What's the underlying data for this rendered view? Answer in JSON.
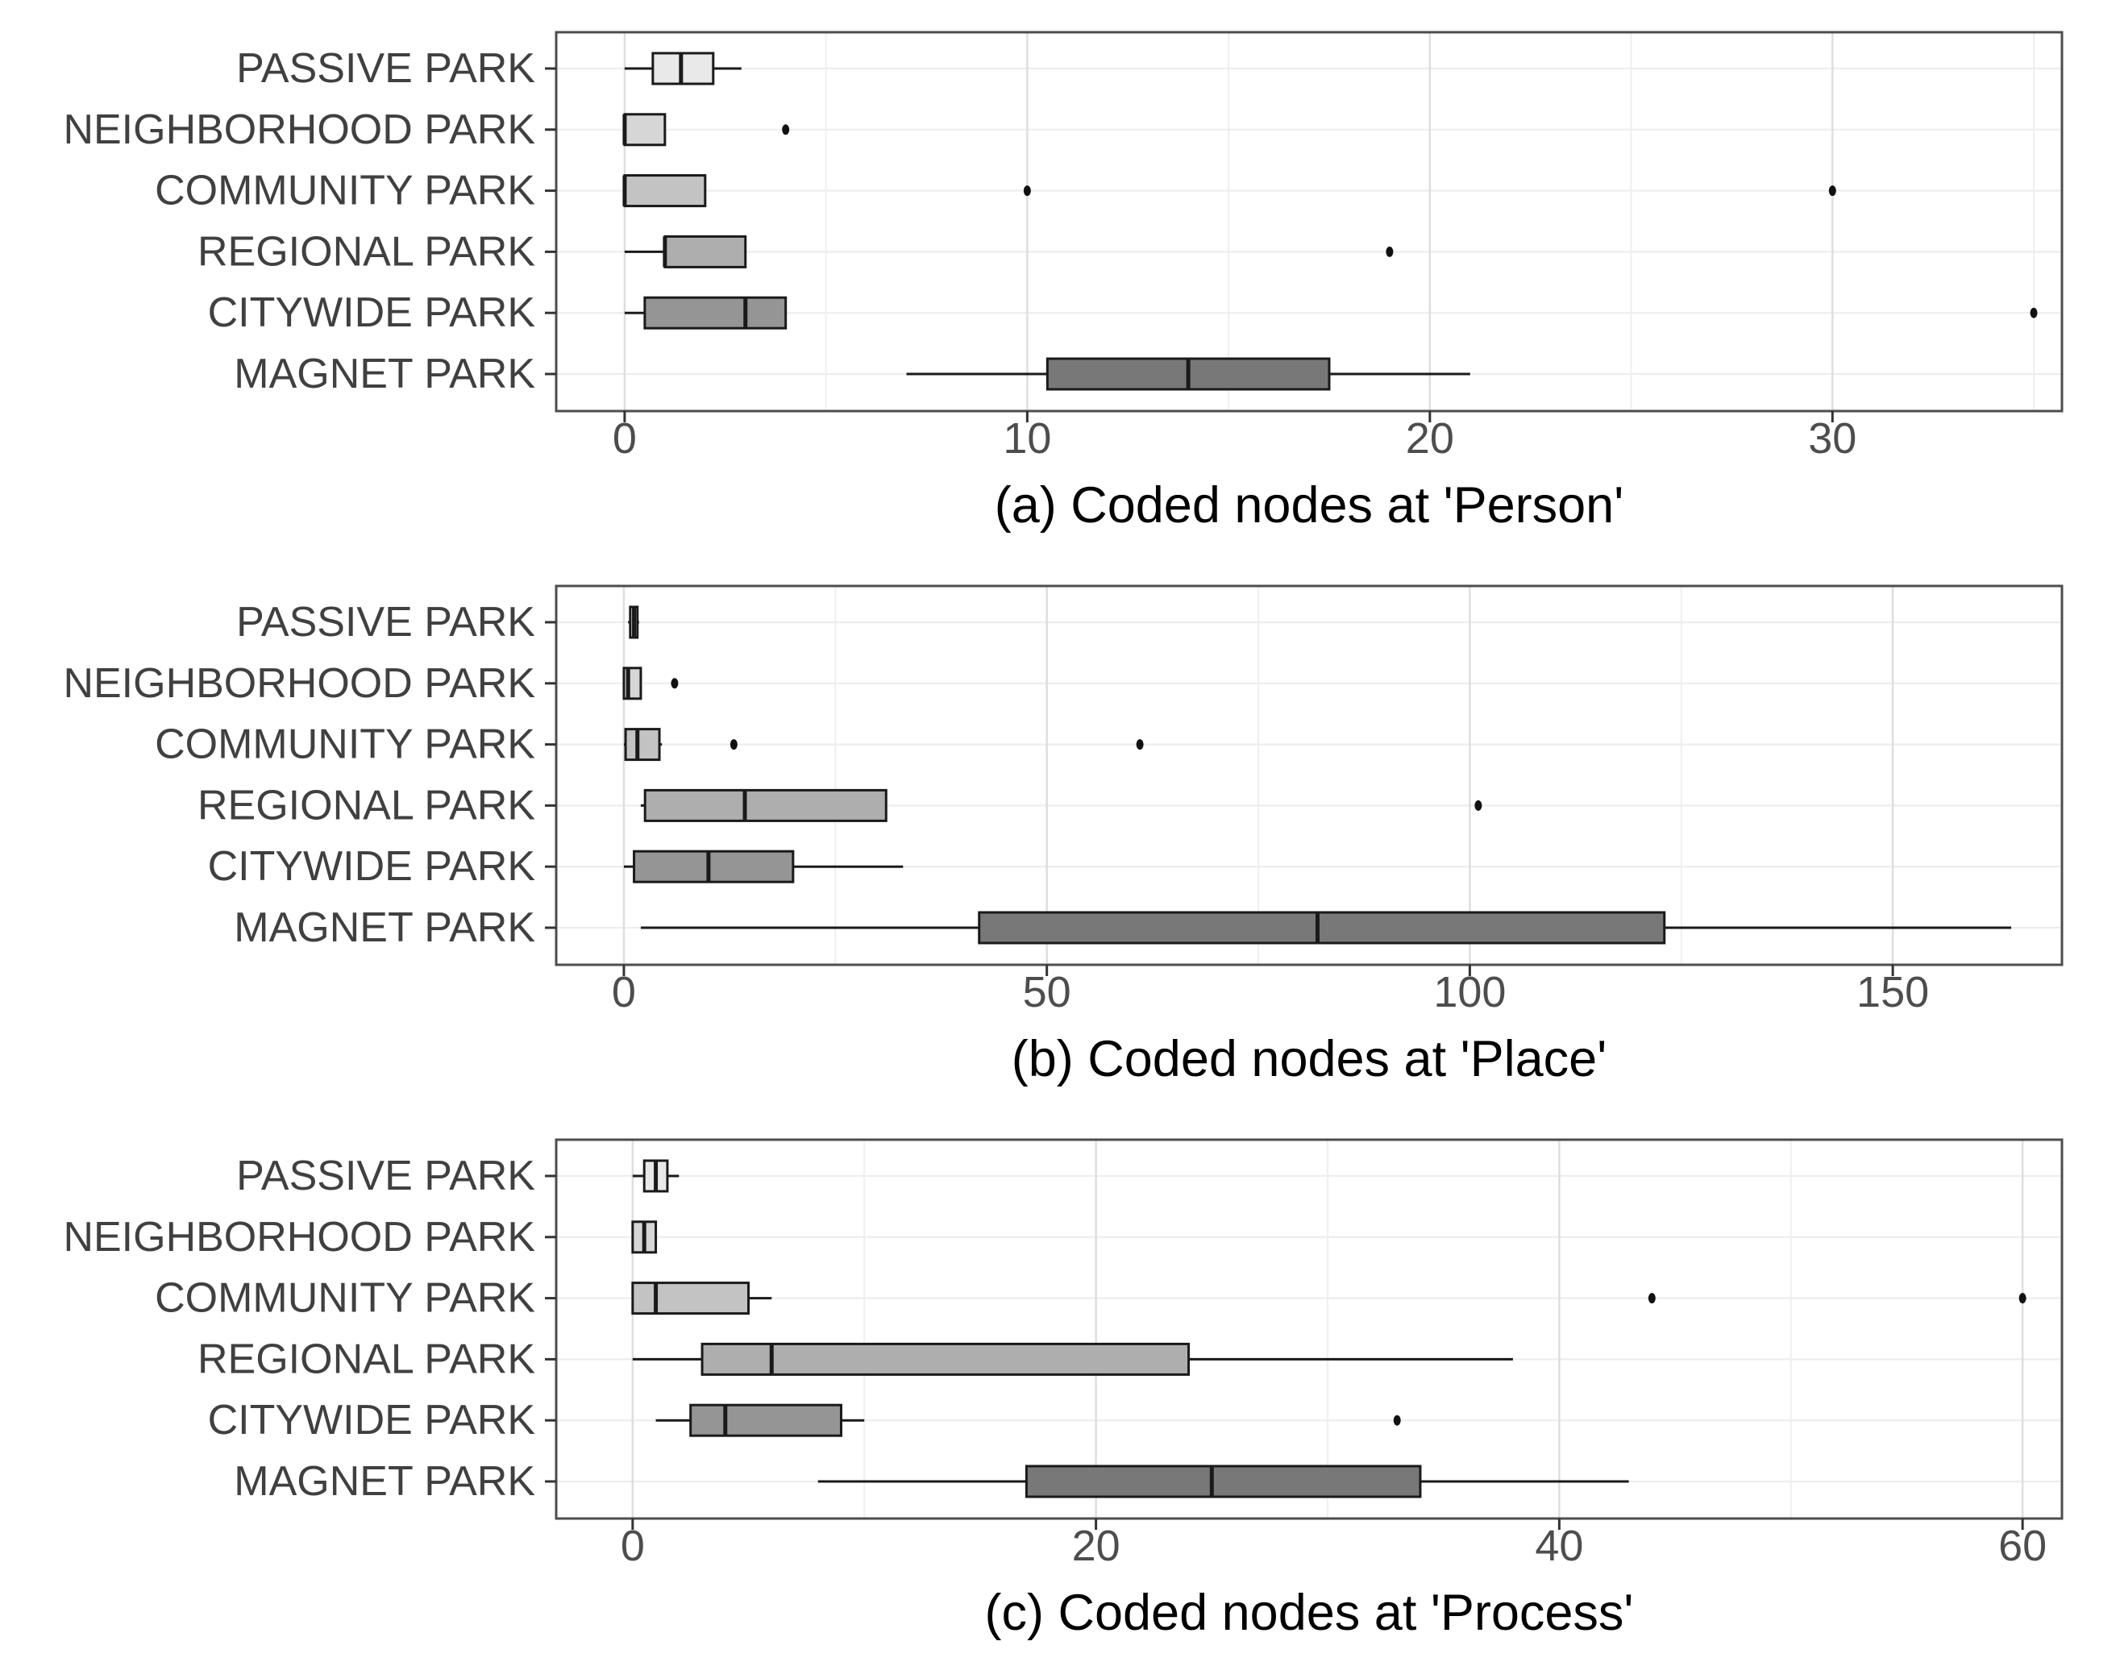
{
  "style": {
    "background": "#ffffff",
    "panel_border": "#4d4d4d",
    "box_border": "#1a1a1a",
    "median_color": "#1a1a1a",
    "whisker_color": "#1a1a1a",
    "outlier_color": "#111111",
    "grid_major": "#dedede",
    "grid_minor": "#efefef",
    "grid_row": "#ededed",
    "tick_color": "#333333",
    "axis_text_color": "#4d4d4d",
    "category_text_color": "#404040",
    "caption_color": "#000000",
    "category_fills": [
      "#e9e9e9",
      "#d6d6d6",
      "#c3c3c3",
      "#aeaeae",
      "#959595",
      "#787878"
    ]
  },
  "categories": [
    "PASSIVE PARK",
    "NEIGHBORHOOD PARK",
    "COMMUNITY PARK",
    "REGIONAL PARK",
    "CITYWIDE PARK",
    "MAGNET PARK"
  ],
  "chart_data": [
    {
      "type": "boxplot",
      "orientation": "horizontal",
      "title": "(a) Coded nodes at 'Person'",
      "xlabel": "(a) Coded nodes at 'Person'",
      "xlim": [
        -1.7,
        35.7
      ],
      "xticks": [
        0,
        10,
        20,
        30
      ],
      "minor_xticks": [
        5,
        15,
        25,
        35
      ],
      "grid": true,
      "legend": false,
      "categories": [
        "PASSIVE PARK",
        "NEIGHBORHOOD PARK",
        "COMMUNITY PARK",
        "REGIONAL PARK",
        "CITYWIDE PARK",
        "MAGNET PARK"
      ],
      "series": [
        {
          "category": "PASSIVE PARK",
          "min": 0,
          "q1": 0.7,
          "median": 1.4,
          "q3": 2.2,
          "max": 2.9,
          "outliers": []
        },
        {
          "category": "NEIGHBORHOOD PARK",
          "min": 0,
          "q1": 0,
          "median": 0,
          "q3": 1,
          "max": 1,
          "outliers": [
            4
          ]
        },
        {
          "category": "COMMUNITY PARK",
          "min": 0,
          "q1": 0,
          "median": 0,
          "q3": 2,
          "max": 2,
          "outliers": [
            10,
            30
          ]
        },
        {
          "category": "REGIONAL PARK",
          "min": 0,
          "q1": 1,
          "median": 1,
          "q3": 3,
          "max": 3,
          "outliers": [
            19
          ]
        },
        {
          "category": "CITYWIDE PARK",
          "min": 0,
          "q1": 0.5,
          "median": 3,
          "q3": 4,
          "max": 4,
          "outliers": [
            35
          ]
        },
        {
          "category": "MAGNET PARK",
          "min": 7,
          "q1": 10.5,
          "median": 14,
          "q3": 17.5,
          "max": 21,
          "outliers": []
        }
      ]
    },
    {
      "type": "boxplot",
      "orientation": "horizontal",
      "title": "(b) Coded nodes at 'Place'",
      "xlabel": "(b) Coded nodes at 'Place'",
      "xlim": [
        -8,
        170
      ],
      "xticks": [
        0,
        50,
        100,
        150
      ],
      "minor_xticks": [
        25,
        75,
        125
      ],
      "grid": true,
      "legend": false,
      "categories": [
        "PASSIVE PARK",
        "NEIGHBORHOOD PARK",
        "COMMUNITY PARK",
        "REGIONAL PARK",
        "CITYWIDE PARK",
        "MAGNET PARK"
      ],
      "series": [
        {
          "category": "PASSIVE PARK",
          "min": 0.5,
          "q1": 0.75,
          "median": 1.2,
          "q3": 1.6,
          "max": 1.8,
          "outliers": []
        },
        {
          "category": "NEIGHBORHOOD PARK",
          "min": 0,
          "q1": 0,
          "median": 0.5,
          "q3": 2,
          "max": 2,
          "outliers": [
            6
          ]
        },
        {
          "category": "COMMUNITY PARK",
          "min": 0,
          "q1": 0.2,
          "median": 1.6,
          "q3": 4.2,
          "max": 4.5,
          "outliers": [
            13,
            61
          ]
        },
        {
          "category": "REGIONAL PARK",
          "min": 2,
          "q1": 2.5,
          "median": 14.3,
          "q3": 31,
          "max": 31,
          "outliers": [
            101
          ]
        },
        {
          "category": "CITYWIDE PARK",
          "min": 0,
          "q1": 1.2,
          "median": 10,
          "q3": 20,
          "max": 33,
          "outliers": []
        },
        {
          "category": "MAGNET PARK",
          "min": 2,
          "q1": 42,
          "median": 82,
          "q3": 123,
          "max": 164,
          "outliers": []
        }
      ]
    },
    {
      "type": "boxplot",
      "orientation": "horizontal",
      "title": "(c) Coded nodes at 'Process'",
      "xlabel": "(c) Coded nodes at 'Process'",
      "xlim": [
        -3.3,
        61.7
      ],
      "xticks": [
        0,
        20,
        40,
        60
      ],
      "minor_xticks": [
        10,
        30,
        50
      ],
      "grid": true,
      "legend": false,
      "categories": [
        "PASSIVE PARK",
        "NEIGHBORHOOD PARK",
        "COMMUNITY PARK",
        "REGIONAL PARK",
        "CITYWIDE PARK",
        "MAGNET PARK"
      ],
      "series": [
        {
          "category": "PASSIVE PARK",
          "min": 0,
          "q1": 0.5,
          "median": 1,
          "q3": 1.5,
          "max": 2,
          "outliers": []
        },
        {
          "category": "NEIGHBORHOOD PARK",
          "min": 0,
          "q1": 0,
          "median": 0.5,
          "q3": 1,
          "max": 1,
          "outliers": []
        },
        {
          "category": "COMMUNITY PARK",
          "min": 0,
          "q1": 0,
          "median": 1,
          "q3": 5,
          "max": 6,
          "outliers": [
            44,
            60
          ]
        },
        {
          "category": "REGIONAL PARK",
          "min": 0,
          "q1": 3,
          "median": 6,
          "q3": 24,
          "max": 38,
          "outliers": []
        },
        {
          "category": "CITYWIDE PARK",
          "min": 1,
          "q1": 2.5,
          "median": 4,
          "q3": 9,
          "max": 10,
          "outliers": [
            33
          ]
        },
        {
          "category": "MAGNET PARK",
          "min": 8,
          "q1": 17,
          "median": 25,
          "q3": 34,
          "max": 43,
          "outliers": []
        }
      ]
    }
  ]
}
